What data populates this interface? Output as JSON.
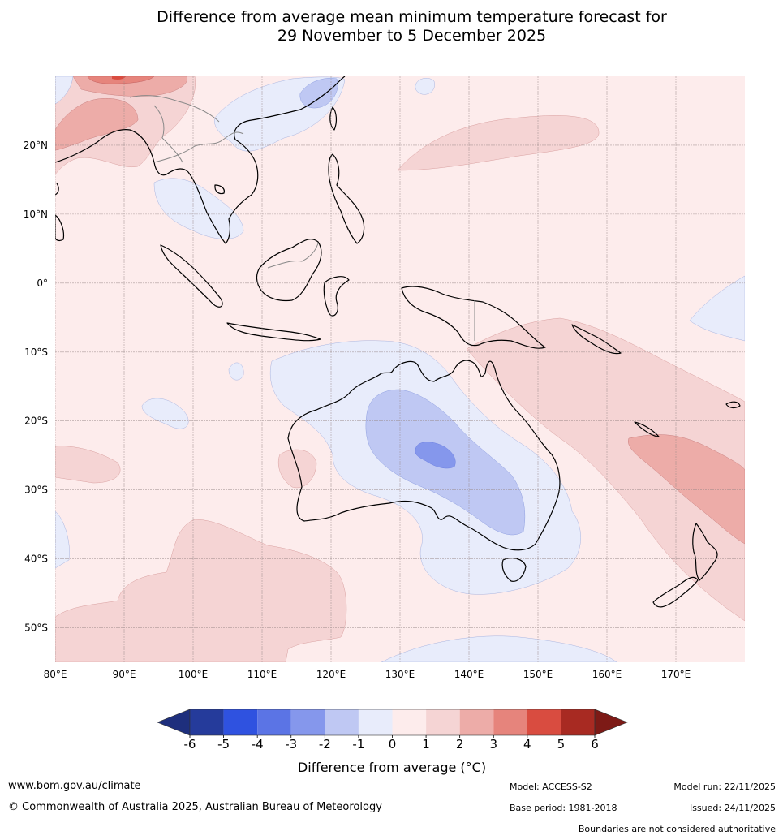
{
  "title": {
    "line1": "Difference from average mean minimum temperature forecast for",
    "line2": "29 November to 5 December 2025"
  },
  "map": {
    "lon_ticks": [
      "80°E",
      "90°E",
      "100°E",
      "110°E",
      "120°E",
      "130°E",
      "140°E",
      "150°E",
      "160°E",
      "170°E"
    ],
    "lat_ticks": [
      "20°N",
      "10°N",
      "0°",
      "10°S",
      "20°S",
      "30°S",
      "40°S",
      "50°S"
    ],
    "extent": {
      "lon": [
        80,
        180
      ],
      "lat": [
        -55,
        30
      ]
    }
  },
  "colorbar": {
    "ticks": [
      "-6",
      "-5",
      "-4",
      "-3",
      "-2",
      "-1",
      "0",
      "1",
      "2",
      "3",
      "4",
      "5",
      "6"
    ],
    "colors": [
      "#253b9b",
      "#2f52e0",
      "#5b74e5",
      "#8597ec",
      "#bfc8f3",
      "#e8ecfb",
      "#fdecec",
      "#f5d4d4",
      "#edaca8",
      "#e6847c",
      "#d94c40",
      "#a82a22"
    ],
    "min_color": "#1e2f7d",
    "max_color": "#7d1a16",
    "label": "Difference from average (°C)"
  },
  "footer": {
    "website": "www.bom.gov.au/climate",
    "copyright": "© Commonwealth of Australia 2025, Australian Bureau of Meteorology",
    "model": "Model: ACCESS-S2",
    "base_period": "Base period: 1981-2018",
    "model_run": "Model run: 22/11/2025",
    "issued": "Issued: 24/11/2025",
    "disclaimer": "Boundaries are not considered authoritative"
  }
}
